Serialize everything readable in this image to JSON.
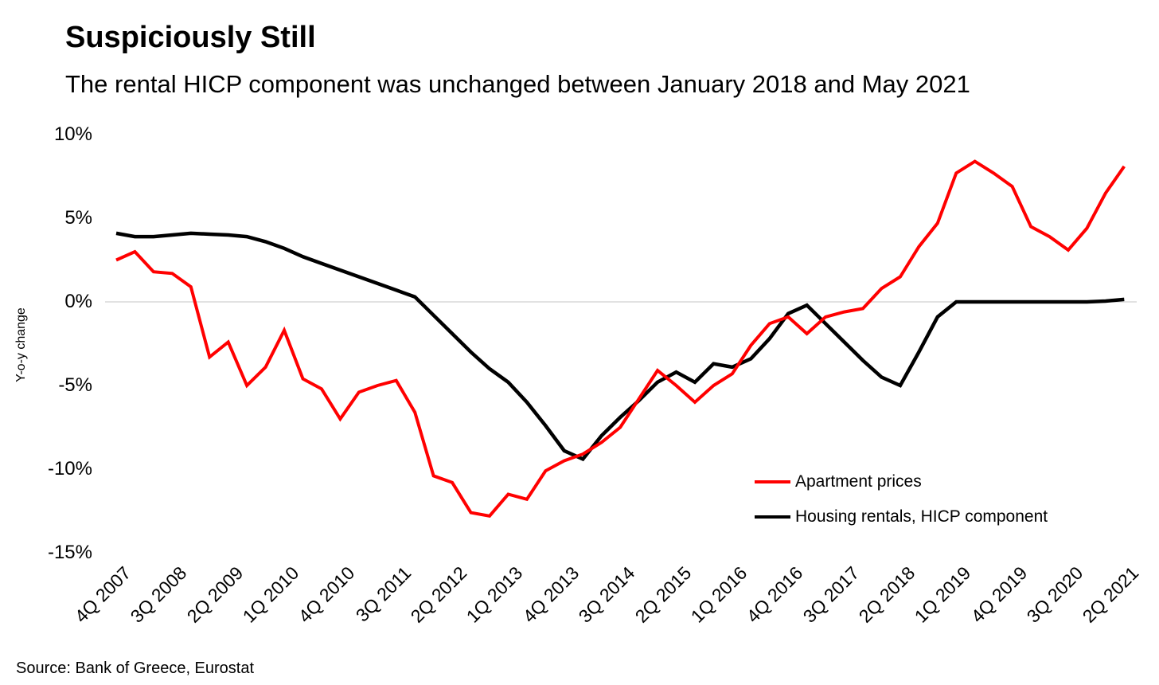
{
  "header": {
    "title": "Suspiciously Still",
    "subtitle": "The rental HICP component was unchanged between January 2018 and May 2021"
  },
  "source_note": "Source: Bank of Greece, Eurostat",
  "legend": {
    "position": "inside-lower-right",
    "items": [
      {
        "label": "Apartment prices",
        "color": "#ff0000",
        "stroke_width": 4
      },
      {
        "label": "Housing rentals, HICP component",
        "color": "#000000",
        "stroke_width": 4.5
      }
    ]
  },
  "chart_data": {
    "type": "line",
    "title": "Suspiciously Still",
    "subtitle": "The rental HICP component was unchanged between January 2018 and May 2021",
    "xlabel": "",
    "ylabel": "Y-o-y change",
    "ylim": [
      -15,
      10
    ],
    "grid": "horizontal zero line only",
    "zero_line_color": "#d9d9d9",
    "y_ticks": [
      {
        "value": 10,
        "label": "10%"
      },
      {
        "value": 5,
        "label": "5%"
      },
      {
        "value": 0,
        "label": "0%"
      },
      {
        "value": -5,
        "label": "-5%"
      },
      {
        "value": -10,
        "label": "-10%"
      },
      {
        "value": -15,
        "label": "-15%"
      }
    ],
    "x_tick_labels": [
      "4Q 2007",
      "3Q 2008",
      "2Q 2009",
      "1Q 2010",
      "4Q 2010",
      "3Q 2011",
      "2Q 2012",
      "1Q 2013",
      "4Q 2013",
      "3Q 2014",
      "2Q 2015",
      "1Q 2016",
      "4Q 2016",
      "3Q 2017",
      "2Q 2018",
      "1Q 2019",
      "4Q 2019",
      "3Q 2020",
      "2Q 2021"
    ],
    "x_tick_every": 3,
    "categories": [
      "4Q 2007",
      "1Q 2008",
      "2Q 2008",
      "3Q 2008",
      "4Q 2008",
      "1Q 2009",
      "2Q 2009",
      "3Q 2009",
      "4Q 2009",
      "1Q 2010",
      "2Q 2010",
      "3Q 2010",
      "4Q 2010",
      "1Q 2011",
      "2Q 2011",
      "3Q 2011",
      "4Q 2011",
      "1Q 2012",
      "2Q 2012",
      "3Q 2012",
      "4Q 2012",
      "1Q 2013",
      "2Q 2013",
      "3Q 2013",
      "4Q 2013",
      "1Q 2014",
      "2Q 2014",
      "3Q 2014",
      "4Q 2014",
      "1Q 2015",
      "2Q 2015",
      "3Q 2015",
      "4Q 2015",
      "1Q 2016",
      "2Q 2016",
      "3Q 2016",
      "4Q 2016",
      "1Q 2017",
      "2Q 2017",
      "3Q 2017",
      "4Q 2017",
      "1Q 2018",
      "2Q 2018",
      "3Q 2018",
      "4Q 2018",
      "1Q 2019",
      "2Q 2019",
      "3Q 2019",
      "4Q 2019",
      "1Q 2020",
      "2Q 2020",
      "3Q 2020",
      "4Q 2020",
      "1Q 2021",
      "2Q 2021"
    ],
    "series": [
      {
        "name": "Apartment prices",
        "color": "#ff0000",
        "stroke_width": 4,
        "values": [
          2.5,
          3.0,
          1.8,
          1.7,
          0.9,
          -3.3,
          -2.4,
          -5.0,
          -3.9,
          -1.7,
          -4.6,
          -5.2,
          -7.0,
          -5.4,
          -5.0,
          -4.7,
          -6.6,
          -10.4,
          -10.8,
          -12.6,
          -12.8,
          -11.5,
          -11.8,
          -10.1,
          -9.5,
          -9.1,
          -8.4,
          -7.5,
          -5.8,
          -4.1,
          -5.0,
          -6.0,
          -5.0,
          -4.3,
          -2.6,
          -1.3,
          -0.9,
          -1.9,
          -0.9,
          -0.6,
          -0.4,
          0.8,
          1.5,
          3.3,
          4.7,
          7.7,
          8.4,
          7.7,
          6.9,
          4.5,
          3.9,
          3.1,
          4.4,
          6.5,
          8.1
        ]
      },
      {
        "name": "Housing rentals, HICP component",
        "color": "#000000",
        "stroke_width": 4.5,
        "values": [
          4.1,
          3.9,
          3.9,
          4.0,
          4.1,
          4.05,
          4.0,
          3.9,
          3.6,
          3.2,
          2.7,
          2.3,
          1.9,
          1.5,
          1.1,
          0.7,
          0.3,
          -0.8,
          -1.9,
          -3.0,
          -4.0,
          -4.8,
          -6.0,
          -7.4,
          -8.9,
          -9.4,
          -8.0,
          -6.9,
          -5.9,
          -4.8,
          -4.2,
          -4.8,
          -3.7,
          -3.9,
          -3.4,
          -2.2,
          -0.7,
          -0.2,
          -1.3,
          -2.4,
          -3.5,
          -4.5,
          -5.0,
          -3.0,
          -0.9,
          0.0,
          0.0,
          0.0,
          0.0,
          0.0,
          0.0,
          0.0,
          0.0,
          0.05,
          0.15
        ]
      }
    ],
    "legend_entries": [
      "Apartment prices",
      "Housing rentals, HICP component"
    ]
  }
}
